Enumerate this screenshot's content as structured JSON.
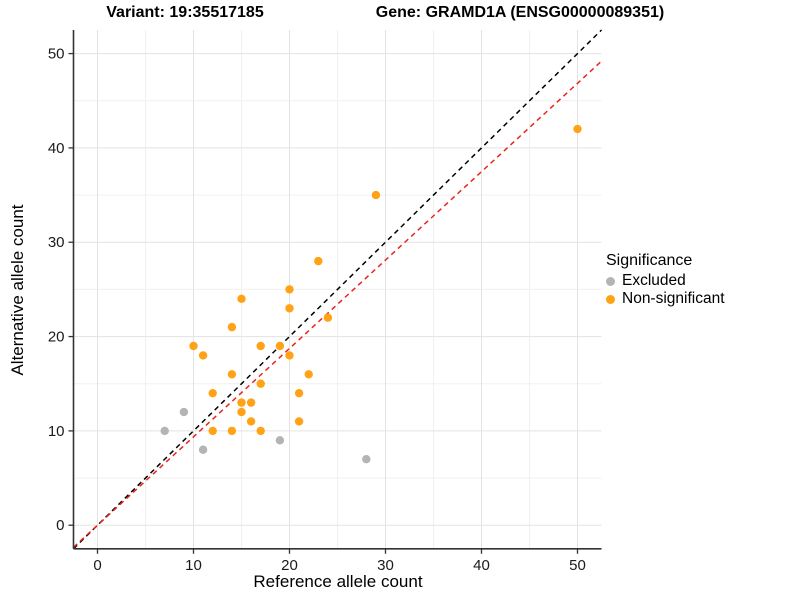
{
  "titles": {
    "variant": "Variant: 19:35517185",
    "gene": "Gene: GRAMD1A (ENSG00000089351)"
  },
  "chart_data": {
    "type": "scatter",
    "xlabel": "Reference allele count",
    "ylabel": "Alternative allele count",
    "xlim": [
      -2.5,
      52.5
    ],
    "ylim": [
      -2.5,
      52.5
    ],
    "major_ticks": [
      0,
      10,
      20,
      30,
      40,
      50
    ],
    "minor_ticks": [
      5,
      15,
      25,
      35,
      45
    ],
    "grid": "on",
    "legend": {
      "title": "Significance",
      "position": "right",
      "items": [
        {
          "label": "Excluded",
          "color": "#b4b4b4"
        },
        {
          "label": "Non-significant",
          "color": "#ffa216"
        }
      ]
    },
    "series": [
      {
        "name": "Excluded",
        "color": "#b4b4b4",
        "points": [
          [
            7,
            10
          ],
          [
            9,
            12
          ],
          [
            11,
            8
          ],
          [
            19,
            9
          ],
          [
            28,
            7
          ]
        ]
      },
      {
        "name": "Non-significant",
        "color": "#ffa216",
        "points": [
          [
            50,
            42
          ],
          [
            29,
            35
          ],
          [
            23,
            28
          ],
          [
            20,
            25
          ],
          [
            15,
            24
          ],
          [
            20,
            23
          ],
          [
            24,
            22
          ],
          [
            14,
            21
          ],
          [
            10,
            19
          ],
          [
            17,
            19
          ],
          [
            19,
            19
          ],
          [
            11,
            18
          ],
          [
            20,
            18
          ],
          [
            14,
            16
          ],
          [
            22,
            16
          ],
          [
            17,
            15
          ],
          [
            12,
            14
          ],
          [
            21,
            14
          ],
          [
            15,
            13
          ],
          [
            16,
            13
          ],
          [
            15,
            12
          ],
          [
            16,
            11
          ],
          [
            21,
            11
          ],
          [
            12,
            10
          ],
          [
            14,
            10
          ],
          [
            17,
            10
          ]
        ]
      }
    ],
    "lines": [
      {
        "name": "identity-line",
        "slope": 1.0,
        "intercept": 0,
        "color": "#000000",
        "style": "dashed"
      },
      {
        "name": "expected-ratio-line",
        "slope": 0.937,
        "intercept": 0,
        "color": "#e8251a",
        "style": "dashed"
      }
    ],
    "colors": {
      "grid_major": "#e3e3e3",
      "grid_minor": "#f0f0f0",
      "axis": "#333333",
      "tick_text": "#1a1a1a"
    }
  }
}
